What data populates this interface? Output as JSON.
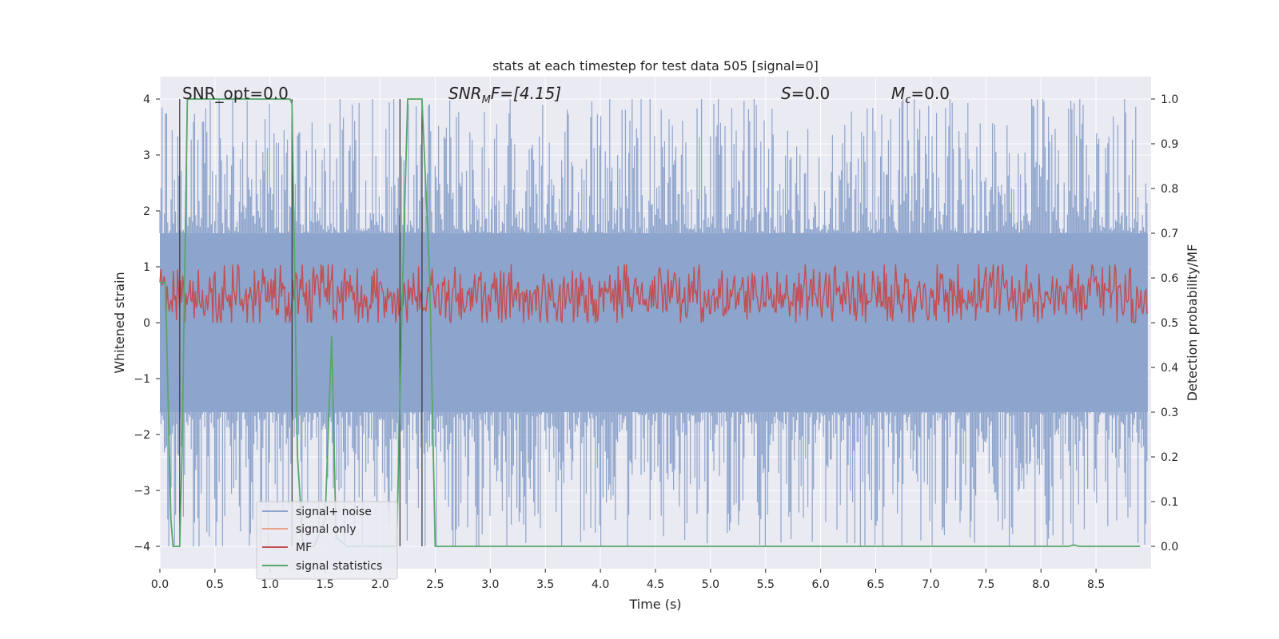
{
  "chart_data": {
    "type": "line",
    "title": "stats at each timestep for test data 505 [signal=0]",
    "xlabel": "Time (s)",
    "ylabel": "Whitened strain",
    "ylabel_right": "Detection probability/MF",
    "xlim": [
      0.0,
      9.0
    ],
    "ylim": [
      -4.4,
      4.4
    ],
    "ylim_right": [
      -0.05,
      1.05
    ],
    "xticks": [
      "0.0",
      "0.5",
      "1.0",
      "1.5",
      "2.0",
      "2.5",
      "3.0",
      "3.5",
      "4.0",
      "4.5",
      "5.0",
      "5.5",
      "6.0",
      "6.5",
      "7.0",
      "7.5",
      "8.0",
      "8.5"
    ],
    "yticks": [
      "4",
      "3",
      "2",
      "1",
      "0",
      "−1",
      "−2",
      "−3",
      "−4"
    ],
    "yticks_right": [
      "1.0",
      "0.9",
      "0.8",
      "0.7",
      "0.6",
      "0.5",
      "0.4",
      "0.3",
      "0.2",
      "0.1",
      "0.0"
    ],
    "grid": true,
    "legend_position": "lower-left",
    "annotations": {
      "snr_opt": "SNR_opt=0.0",
      "snr_mf_base": "SNR",
      "snr_mf_sub": "M",
      "snr_mf_tail": "F=[4.15]",
      "s_label": "S",
      "s_value": "=0.0",
      "mc_label": "M",
      "mc_sub": "c",
      "mc_value": "=0.0"
    },
    "vertical_lines_x": [
      0.18,
      1.2,
      2.18,
      2.38
    ],
    "series": [
      {
        "name": "signal+ noise",
        "color": "#8da4cc",
        "axis": "left",
        "noise_amplitude": 1.6,
        "peak_amplitude": 4.0
      },
      {
        "name": "signal only",
        "color": "#e8a58c",
        "axis": "left",
        "values": []
      },
      {
        "name": "MF",
        "color": "#c44e52",
        "axis": "right",
        "baseline": 0.56,
        "spread": 0.08
      },
      {
        "name": "signal statistics",
        "color": "#55a868",
        "axis": "right",
        "x": [
          0.0,
          0.05,
          0.1,
          0.12,
          0.18,
          0.2,
          0.25,
          0.3,
          0.5,
          1.0,
          1.18,
          1.2,
          1.25,
          1.3,
          1.4,
          1.5,
          1.56,
          1.6,
          1.7,
          2.0,
          2.15,
          2.2,
          2.25,
          2.3,
          2.38,
          2.45,
          2.5,
          3.0,
          5.0,
          8.0,
          8.25,
          8.3,
          8.35,
          8.9
        ],
        "values": [
          0.59,
          0.59,
          0.06,
          0.0,
          0.0,
          0.2,
          1.0,
          1.0,
          1.0,
          1.0,
          1.0,
          0.99,
          0.2,
          0.0,
          0.0,
          0.06,
          0.47,
          0.02,
          0.0,
          0.0,
          0.0,
          0.55,
          1.0,
          1.0,
          1.0,
          0.6,
          0.0,
          0.0,
          0.0,
          0.0,
          0.0,
          0.003,
          0.0,
          0.0
        ]
      }
    ]
  }
}
